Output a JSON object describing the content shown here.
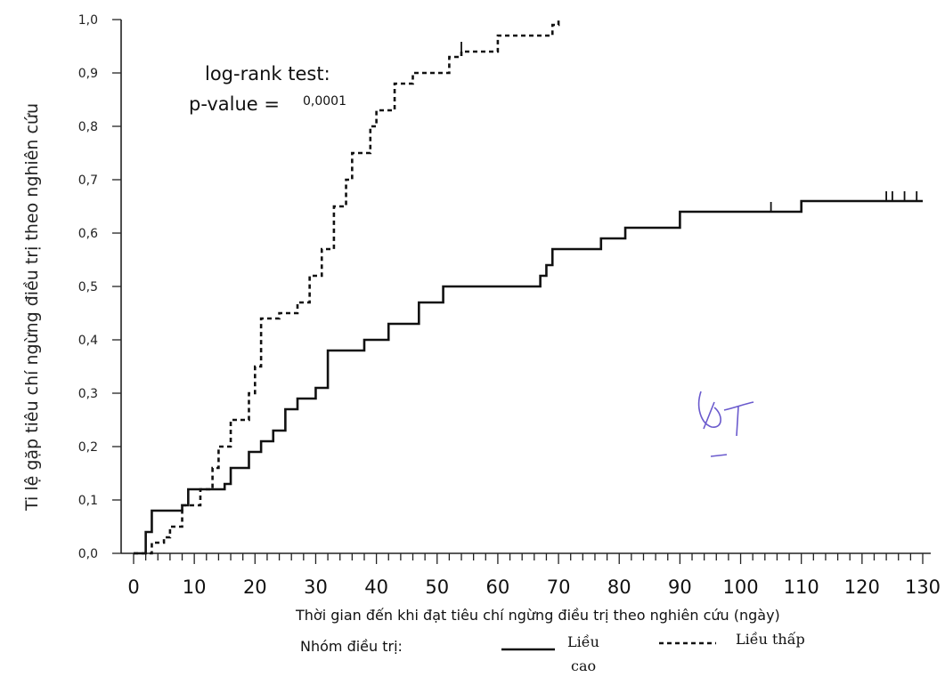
{
  "chart_data": {
    "type": "line",
    "subtype": "kaplan-meier-cumulative-incidence-step",
    "ylabel": "Ti lệ gặp tiêu chí ngừng điều trị theo nghiên cứu",
    "xlabel": "Thời gian đến khi đạt tiêu chí ngừng điều trị theo nghiên cứu (ngày)",
    "xlim": [
      0,
      130
    ],
    "ylim": [
      0,
      1.0
    ],
    "x_ticks": [
      "0",
      "10",
      "20",
      "30",
      "40",
      "50",
      "60",
      "70",
      "80",
      "90",
      "100",
      "110",
      "120",
      "130"
    ],
    "y_ticks": [
      "0,0",
      "0,1",
      "0,2",
      "0,3",
      "0,4",
      "0,5",
      "0,6",
      "0,7",
      "0,8",
      "0,9",
      "1,0"
    ],
    "grid": false,
    "annotation": {
      "line1": "log-rank test:",
      "line2": "p-value =",
      "pvalue": "0,0001"
    },
    "legend": {
      "title": "Nhóm điều trị:",
      "placement": "bottom",
      "entries": [
        {
          "label_line1": "Liều",
          "label_line2": "cao",
          "style": "solid"
        },
        {
          "label_line1": "Liều thấp",
          "label_line2": "",
          "style": "dashed"
        }
      ]
    },
    "series": [
      {
        "line_style": "solid",
        "steps": [
          [
            0,
            0.0
          ],
          [
            2,
            0.04
          ],
          [
            3,
            0.08
          ],
          [
            8,
            0.09
          ],
          [
            9,
            0.12
          ],
          [
            15,
            0.13
          ],
          [
            16,
            0.16
          ],
          [
            19,
            0.19
          ],
          [
            21,
            0.21
          ],
          [
            23,
            0.23
          ],
          [
            25,
            0.27
          ],
          [
            27,
            0.29
          ],
          [
            30,
            0.31
          ],
          [
            32,
            0.38
          ],
          [
            38,
            0.4
          ],
          [
            42,
            0.43
          ],
          [
            47,
            0.47
          ],
          [
            51,
            0.5
          ],
          [
            67,
            0.52
          ],
          [
            68,
            0.54
          ],
          [
            69,
            0.57
          ],
          [
            77,
            0.59
          ],
          [
            81,
            0.61
          ],
          [
            90,
            0.64
          ],
          [
            110,
            0.66
          ],
          [
            130,
            0.66
          ]
        ],
        "censored_x": [
          105,
          124,
          125,
          127,
          129
        ]
      },
      {
        "line_style": "dashed",
        "steps": [
          [
            0,
            0.0
          ],
          [
            3,
            0.02
          ],
          [
            5,
            0.03
          ],
          [
            6,
            0.05
          ],
          [
            8,
            0.09
          ],
          [
            11,
            0.12
          ],
          [
            13,
            0.16
          ],
          [
            14,
            0.2
          ],
          [
            16,
            0.25
          ],
          [
            19,
            0.3
          ],
          [
            20,
            0.35
          ],
          [
            21,
            0.44
          ],
          [
            24,
            0.45
          ],
          [
            27,
            0.47
          ],
          [
            29,
            0.52
          ],
          [
            31,
            0.57
          ],
          [
            33,
            0.65
          ],
          [
            35,
            0.7
          ],
          [
            36,
            0.75
          ],
          [
            39,
            0.8
          ],
          [
            40,
            0.83
          ],
          [
            43,
            0.88
          ],
          [
            46,
            0.9
          ],
          [
            52,
            0.93
          ],
          [
            54,
            0.94
          ],
          [
            60,
            0.97
          ],
          [
            69,
            0.99
          ],
          [
            70,
            1.0
          ]
        ],
        "censored_x": [
          54
        ]
      }
    ]
  }
}
